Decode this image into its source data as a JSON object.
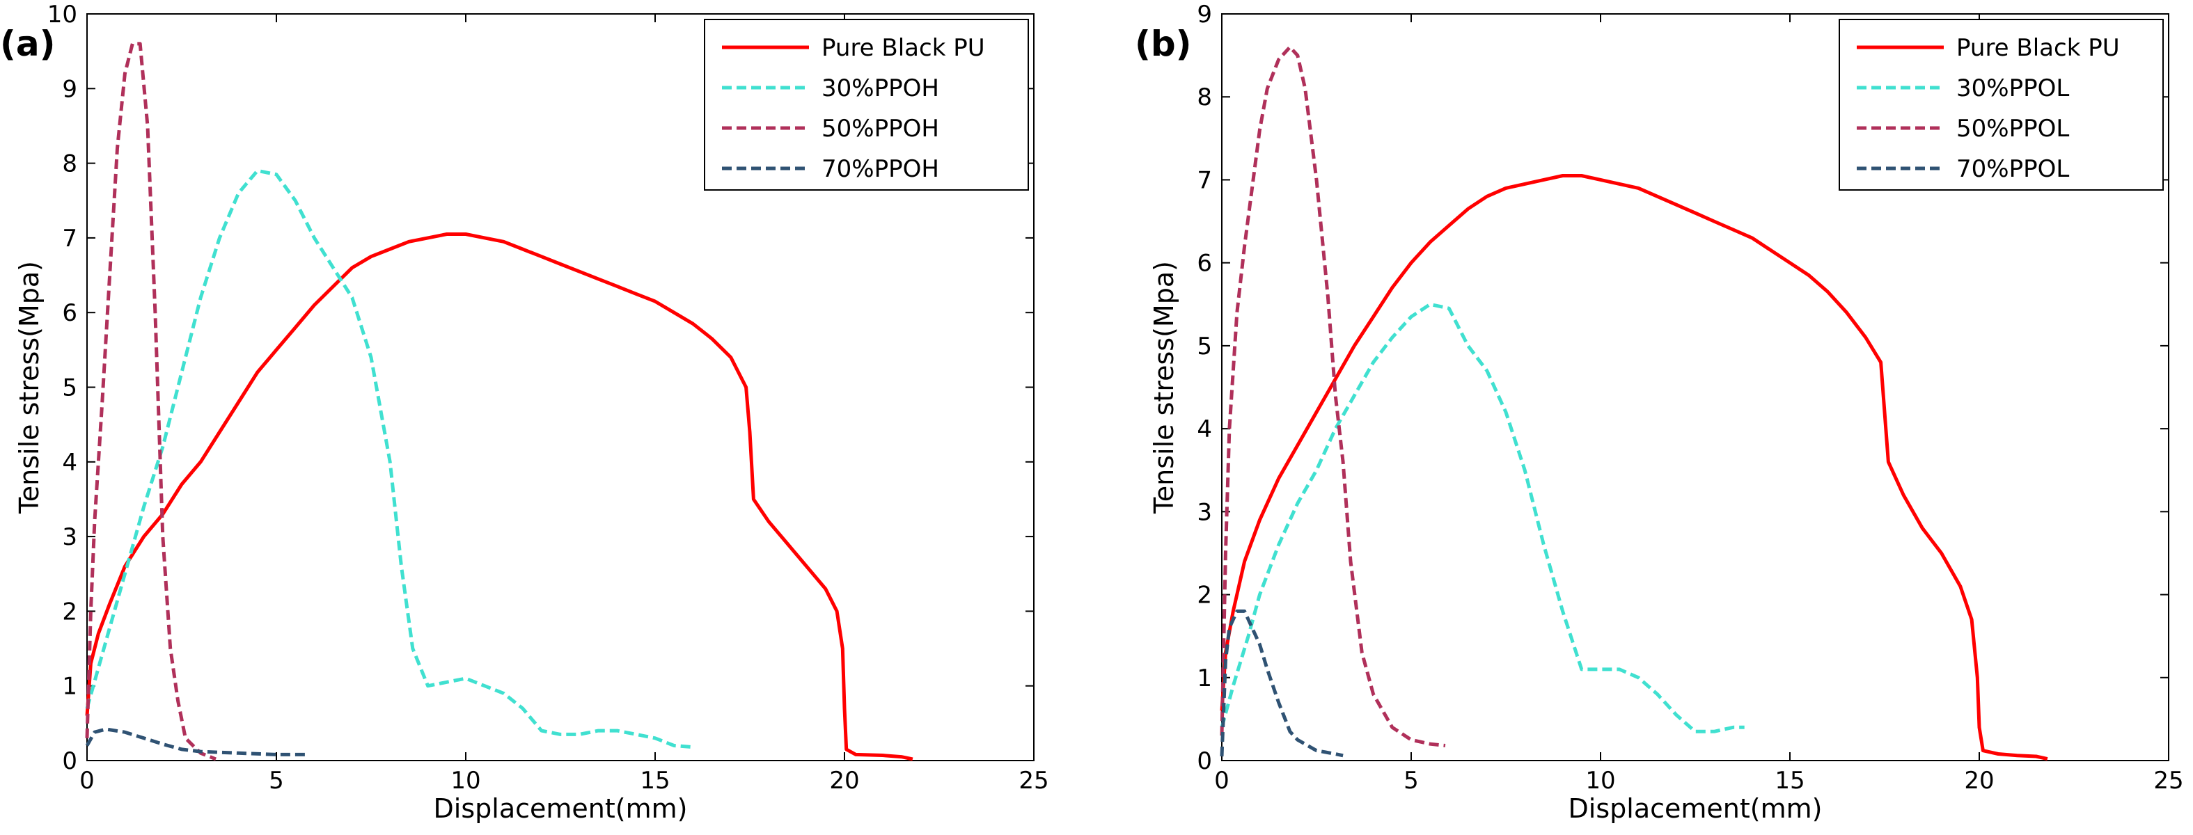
{
  "colors": {
    "pure": "#ff0000",
    "s30": "#40e0d0",
    "s50": "#b0305a",
    "s70": "#2f5273"
  },
  "chart_data": [
    {
      "type": "line",
      "panel_label": "(a)",
      "xlabel": "Displacement(mm)",
      "ylabel": "Tensile stress(Mpa)",
      "xlim": [
        0,
        25
      ],
      "ylim": [
        0,
        10
      ],
      "xticks": [
        0,
        5,
        10,
        15,
        20,
        25
      ],
      "yticks": [
        0,
        1,
        2,
        3,
        4,
        5,
        6,
        7,
        8,
        9,
        10
      ],
      "grid": false,
      "legend_position": "top-right",
      "series": [
        {
          "name": "Pure Black PU",
          "color_key": "pure",
          "dash": false,
          "points": [
            [
              0,
              0.6
            ],
            [
              0.1,
              1.3
            ],
            [
              0.3,
              1.7
            ],
            [
              0.6,
              2.1
            ],
            [
              1,
              2.6
            ],
            [
              1.5,
              3.0
            ],
            [
              2,
              3.3
            ],
            [
              2.5,
              3.7
            ],
            [
              3,
              4.0
            ],
            [
              3.5,
              4.4
            ],
            [
              4,
              4.8
            ],
            [
              4.5,
              5.2
            ],
            [
              5,
              5.5
            ],
            [
              5.5,
              5.8
            ],
            [
              6,
              6.1
            ],
            [
              6.5,
              6.35
            ],
            [
              7,
              6.6
            ],
            [
              7.5,
              6.75
            ],
            [
              8,
              6.85
            ],
            [
              8.5,
              6.95
            ],
            [
              9,
              7.0
            ],
            [
              9.5,
              7.05
            ],
            [
              10,
              7.05
            ],
            [
              10.5,
              7.0
            ],
            [
              11,
              6.95
            ],
            [
              11.5,
              6.85
            ],
            [
              12,
              6.75
            ],
            [
              12.5,
              6.65
            ],
            [
              13,
              6.55
            ],
            [
              13.5,
              6.45
            ],
            [
              14,
              6.35
            ],
            [
              14.5,
              6.25
            ],
            [
              15,
              6.15
            ],
            [
              15.5,
              6.0
            ],
            [
              16,
              5.85
            ],
            [
              16.5,
              5.65
            ],
            [
              17,
              5.4
            ],
            [
              17.4,
              5.0
            ],
            [
              17.5,
              4.4
            ],
            [
              17.6,
              3.5
            ],
            [
              18,
              3.2
            ],
            [
              18.5,
              2.9
            ],
            [
              19,
              2.6
            ],
            [
              19.5,
              2.3
            ],
            [
              19.8,
              2.0
            ],
            [
              19.95,
              1.5
            ],
            [
              20,
              0.7
            ],
            [
              20.05,
              0.15
            ],
            [
              20.3,
              0.08
            ],
            [
              21,
              0.07
            ],
            [
              21.5,
              0.05
            ],
            [
              21.8,
              0.02
            ]
          ]
        },
        {
          "name": "30%PPOH",
          "color_key": "s30",
          "dash": true,
          "points": [
            [
              0,
              0.7
            ],
            [
              0.5,
              1.6
            ],
            [
              1,
              2.5
            ],
            [
              1.5,
              3.4
            ],
            [
              2,
              4.2
            ],
            [
              2.5,
              5.2
            ],
            [
              3,
              6.2
            ],
            [
              3.5,
              7.0
            ],
            [
              4,
              7.6
            ],
            [
              4.5,
              7.9
            ],
            [
              5,
              7.85
            ],
            [
              5.5,
              7.5
            ],
            [
              6,
              7.0
            ],
            [
              6.5,
              6.6
            ],
            [
              7,
              6.2
            ],
            [
              7.5,
              5.4
            ],
            [
              8,
              4.0
            ],
            [
              8.3,
              2.6
            ],
            [
              8.6,
              1.5
            ],
            [
              9,
              1.0
            ],
            [
              9.5,
              1.05
            ],
            [
              10,
              1.1
            ],
            [
              10.5,
              1.0
            ],
            [
              11,
              0.9
            ],
            [
              11.5,
              0.7
            ],
            [
              12,
              0.4
            ],
            [
              12.5,
              0.35
            ],
            [
              13,
              0.35
            ],
            [
              13.5,
              0.4
            ],
            [
              14,
              0.4
            ],
            [
              14.5,
              0.35
            ],
            [
              15,
              0.3
            ],
            [
              15.5,
              0.2
            ],
            [
              16,
              0.18
            ]
          ]
        },
        {
          "name": "50%PPOH",
          "color_key": "s50",
          "dash": true,
          "points": [
            [
              0,
              0.3
            ],
            [
              0.1,
              2.0
            ],
            [
              0.2,
              3.2
            ],
            [
              0.4,
              4.8
            ],
            [
              0.6,
              6.5
            ],
            [
              0.8,
              8.2
            ],
            [
              1,
              9.2
            ],
            [
              1.2,
              9.6
            ],
            [
              1.4,
              9.6
            ],
            [
              1.6,
              8.5
            ],
            [
              1.8,
              6.0
            ],
            [
              2,
              3.0
            ],
            [
              2.2,
              1.5
            ],
            [
              2.4,
              0.8
            ],
            [
              2.6,
              0.3
            ],
            [
              3,
              0.1
            ],
            [
              3.4,
              0.02
            ]
          ]
        },
        {
          "name": "70%PPOH",
          "color_key": "s70",
          "dash": true,
          "points": [
            [
              0,
              0.2
            ],
            [
              0.2,
              0.38
            ],
            [
              0.5,
              0.42
            ],
            [
              1,
              0.38
            ],
            [
              1.5,
              0.3
            ],
            [
              2,
              0.22
            ],
            [
              2.5,
              0.15
            ],
            [
              3,
              0.12
            ],
            [
              4,
              0.1
            ],
            [
              5,
              0.08
            ],
            [
              5.8,
              0.08
            ]
          ]
        }
      ]
    },
    {
      "type": "line",
      "panel_label": "(b)",
      "xlabel": "Displacement(mm)",
      "ylabel": "Tensile stress(Mpa)",
      "xlim": [
        0,
        25
      ],
      "ylim": [
        0,
        9
      ],
      "xticks": [
        0,
        5,
        10,
        15,
        20,
        25
      ],
      "yticks": [
        0,
        1,
        2,
        3,
        4,
        5,
        6,
        7,
        8,
        9
      ],
      "grid": false,
      "legend_position": "top-right",
      "series": [
        {
          "name": "Pure Black PU",
          "color_key": "pure",
          "dash": false,
          "points": [
            [
              0,
              0.6
            ],
            [
              0.1,
              1.3
            ],
            [
              0.3,
              1.8
            ],
            [
              0.6,
              2.4
            ],
            [
              1,
              2.9
            ],
            [
              1.5,
              3.4
            ],
            [
              2,
              3.8
            ],
            [
              2.5,
              4.2
            ],
            [
              3,
              4.6
            ],
            [
              3.5,
              5.0
            ],
            [
              4,
              5.35
            ],
            [
              4.5,
              5.7
            ],
            [
              5,
              6.0
            ],
            [
              5.5,
              6.25
            ],
            [
              6,
              6.45
            ],
            [
              6.5,
              6.65
            ],
            [
              7,
              6.8
            ],
            [
              7.5,
              6.9
            ],
            [
              8,
              6.95
            ],
            [
              8.5,
              7.0
            ],
            [
              9,
              7.05
            ],
            [
              9.5,
              7.05
            ],
            [
              10,
              7.0
            ],
            [
              10.5,
              6.95
            ],
            [
              11,
              6.9
            ],
            [
              11.5,
              6.8
            ],
            [
              12,
              6.7
            ],
            [
              12.5,
              6.6
            ],
            [
              13,
              6.5
            ],
            [
              13.5,
              6.4
            ],
            [
              14,
              6.3
            ],
            [
              14.5,
              6.15
            ],
            [
              15,
              6.0
            ],
            [
              15.5,
              5.85
            ],
            [
              16,
              5.65
            ],
            [
              16.5,
              5.4
            ],
            [
              17,
              5.1
            ],
            [
              17.4,
              4.8
            ],
            [
              17.5,
              4.2
            ],
            [
              17.6,
              3.6
            ],
            [
              18,
              3.2
            ],
            [
              18.5,
              2.8
            ],
            [
              19,
              2.5
            ],
            [
              19.5,
              2.1
            ],
            [
              19.8,
              1.7
            ],
            [
              19.95,
              1.0
            ],
            [
              20,
              0.4
            ],
            [
              20.1,
              0.12
            ],
            [
              20.5,
              0.08
            ],
            [
              21,
              0.06
            ],
            [
              21.5,
              0.05
            ],
            [
              21.8,
              0.02
            ]
          ]
        },
        {
          "name": "30%PPOL",
          "color_key": "s30",
          "dash": true,
          "points": [
            [
              0,
              0.4
            ],
            [
              0.3,
              0.9
            ],
            [
              0.7,
              1.5
            ],
            [
              1,
              2.0
            ],
            [
              1.5,
              2.6
            ],
            [
              2,
              3.1
            ],
            [
              2.5,
              3.5
            ],
            [
              3,
              4.0
            ],
            [
              3.5,
              4.4
            ],
            [
              4,
              4.8
            ],
            [
              4.5,
              5.1
            ],
            [
              5,
              5.35
            ],
            [
              5.5,
              5.5
            ],
            [
              6,
              5.45
            ],
            [
              6.5,
              5.0
            ],
            [
              7,
              4.7
            ],
            [
              7.5,
              4.2
            ],
            [
              8,
              3.5
            ],
            [
              8.5,
              2.6
            ],
            [
              9,
              1.8
            ],
            [
              9.5,
              1.1
            ],
            [
              10,
              1.1
            ],
            [
              10.5,
              1.1
            ],
            [
              11,
              1.0
            ],
            [
              11.5,
              0.8
            ],
            [
              12,
              0.55
            ],
            [
              12.5,
              0.35
            ],
            [
              13,
              0.35
            ],
            [
              13.5,
              0.4
            ],
            [
              13.8,
              0.4
            ]
          ]
        },
        {
          "name": "50%PPOL",
          "color_key": "s50",
          "dash": true,
          "points": [
            [
              0,
              0.3
            ],
            [
              0.1,
              2.5
            ],
            [
              0.2,
              4.0
            ],
            [
              0.4,
              5.4
            ],
            [
              0.6,
              6.2
            ],
            [
              0.8,
              6.9
            ],
            [
              1,
              7.6
            ],
            [
              1.2,
              8.1
            ],
            [
              1.5,
              8.45
            ],
            [
              1.8,
              8.6
            ],
            [
              2,
              8.5
            ],
            [
              2.2,
              8.1
            ],
            [
              2.5,
              7.0
            ],
            [
              2.8,
              5.6
            ],
            [
              3,
              4.4
            ],
            [
              3.2,
              3.6
            ],
            [
              3.4,
              2.4
            ],
            [
              3.7,
              1.3
            ],
            [
              4,
              0.8
            ],
            [
              4.5,
              0.4
            ],
            [
              5,
              0.25
            ],
            [
              5.5,
              0.2
            ],
            [
              5.9,
              0.18
            ]
          ]
        },
        {
          "name": "70%PPOL",
          "color_key": "s70",
          "dash": true,
          "points": [
            [
              0,
              0.05
            ],
            [
              0.1,
              1.2
            ],
            [
              0.2,
              1.6
            ],
            [
              0.4,
              1.8
            ],
            [
              0.6,
              1.8
            ],
            [
              0.8,
              1.6
            ],
            [
              1,
              1.4
            ],
            [
              1.2,
              1.1
            ],
            [
              1.5,
              0.7
            ],
            [
              1.8,
              0.35
            ],
            [
              2,
              0.25
            ],
            [
              2.5,
              0.12
            ],
            [
              3,
              0.08
            ],
            [
              3.2,
              0.06
            ]
          ]
        }
      ]
    }
  ]
}
